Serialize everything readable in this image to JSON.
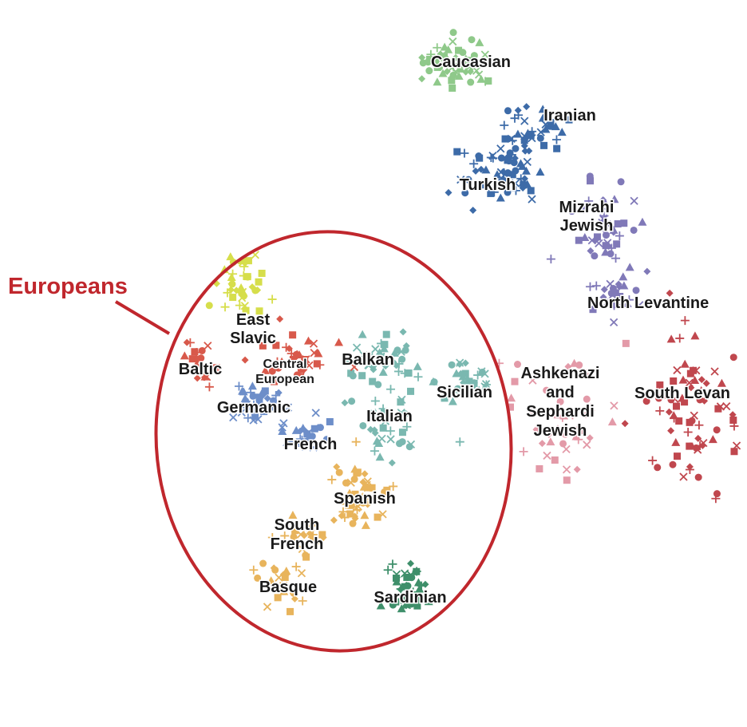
{
  "chart_data": {
    "type": "scatter",
    "title": "",
    "xlabel": "",
    "ylabel": "",
    "grid": false,
    "legend": "none",
    "highlight": {
      "label": "Europeans",
      "color": "#c0272d"
    },
    "series": [
      {
        "name": "Caucasian",
        "color": "#8fc98a",
        "marker": "mixed",
        "center": [
          575,
          80
        ],
        "spread": [
          45,
          30
        ],
        "count": 55,
        "label": [
          "Caucasian"
        ]
      },
      {
        "name": "Iranian",
        "color": "#3d6ba8",
        "marker": "mixed",
        "center": [
          660,
          160
        ],
        "spread": [
          50,
          35
        ],
        "count": 40,
        "label": [
          "Iranian"
        ]
      },
      {
        "name": "Turkish",
        "color": "#3d6ba8",
        "marker": "mixed",
        "center": [
          625,
          220
        ],
        "spread": [
          55,
          40
        ],
        "count": 55,
        "label": [
          "Turkish"
        ]
      },
      {
        "name": "Mizrahi Jewish",
        "color": "#8079b8",
        "marker": "mixed",
        "center": [
          760,
          290
        ],
        "spread": [
          40,
          60
        ],
        "count": 45,
        "label": [
          "Mizrahi",
          "Jewish"
        ]
      },
      {
        "name": "North Levantine",
        "color": "#8079b8",
        "marker": "mixed",
        "center": [
          770,
          370
        ],
        "spread": [
          30,
          30
        ],
        "count": 25,
        "label": [
          "North Levantine"
        ]
      },
      {
        "name": "South Levantine",
        "color": "#c0474e",
        "marker": "mixed",
        "center": [
          870,
          520
        ],
        "spread": [
          60,
          90
        ],
        "count": 75,
        "label": [
          "South Levan"
        ]
      },
      {
        "name": "Ashkenazi and Sephardi Jewish",
        "color": "#e39aa8",
        "marker": "mixed",
        "center": [
          700,
          520
        ],
        "spread": [
          75,
          70
        ],
        "count": 45,
        "label": [
          "Ashkenazi",
          "and",
          "Sephardi",
          "Jewish"
        ]
      },
      {
        "name": "Sicilian",
        "color": "#7ab8b0",
        "marker": "mixed",
        "center": [
          585,
          480
        ],
        "spread": [
          40,
          45
        ],
        "count": 30,
        "label": [
          "Sicilian"
        ]
      },
      {
        "name": "Balkan",
        "color": "#7ab8b0",
        "marker": "mixed",
        "center": [
          480,
          445
        ],
        "spread": [
          55,
          35
        ],
        "count": 40,
        "label": [
          "Balkan"
        ]
      },
      {
        "name": "Italian",
        "color": "#7ab8b0",
        "marker": "mixed",
        "center": [
          485,
          525
        ],
        "spread": [
          40,
          45
        ],
        "count": 35,
        "label": [
          "Italian"
        ]
      },
      {
        "name": "East Slavic",
        "color": "#d6de4b",
        "marker": "mixed",
        "center": [
          305,
          360
        ],
        "spread": [
          30,
          45
        ],
        "count": 40,
        "label": [
          "East",
          "Slavic"
        ]
      },
      {
        "name": "Baltic",
        "color": "#d8594b",
        "marker": "mixed",
        "center": [
          255,
          455
        ],
        "spread": [
          25,
          25
        ],
        "count": 20,
        "label": [
          "Baltic"
        ]
      },
      {
        "name": "Central European",
        "color": "#d8594b",
        "marker": "mixed",
        "center": [
          365,
          450
        ],
        "spread": [
          50,
          25
        ],
        "count": 40,
        "label": [
          "Central",
          "European"
        ]
      },
      {
        "name": "Germanic",
        "color": "#6d8ec9",
        "marker": "mixed",
        "center": [
          320,
          505
        ],
        "spread": [
          35,
          25
        ],
        "count": 40,
        "label": [
          "Germanic"
        ]
      },
      {
        "name": "French",
        "color": "#6d8ec9",
        "marker": "mixed",
        "center": [
          385,
          540
        ],
        "spread": [
          30,
          25
        ],
        "count": 25,
        "label": [
          "French"
        ]
      },
      {
        "name": "Spanish",
        "color": "#e8b45c",
        "marker": "mixed",
        "center": [
          450,
          625
        ],
        "spread": [
          40,
          50
        ],
        "count": 55,
        "label": [
          "Spanish"
        ]
      },
      {
        "name": "South French",
        "color": "#e8b45c",
        "marker": "mixed",
        "center": [
          385,
          670
        ],
        "spread": [
          30,
          30
        ],
        "count": 20,
        "label": [
          "South",
          "French"
        ]
      },
      {
        "name": "Basque",
        "color": "#e8b45c",
        "marker": "mixed",
        "center": [
          355,
          735
        ],
        "spread": [
          30,
          35
        ],
        "count": 25,
        "label": [
          "Basque"
        ]
      },
      {
        "name": "Sardinian",
        "color": "#3e8f6a",
        "marker": "mixed",
        "center": [
          510,
          740
        ],
        "spread": [
          25,
          35
        ],
        "count": 40,
        "label": [
          "Sardinian"
        ]
      }
    ]
  }
}
